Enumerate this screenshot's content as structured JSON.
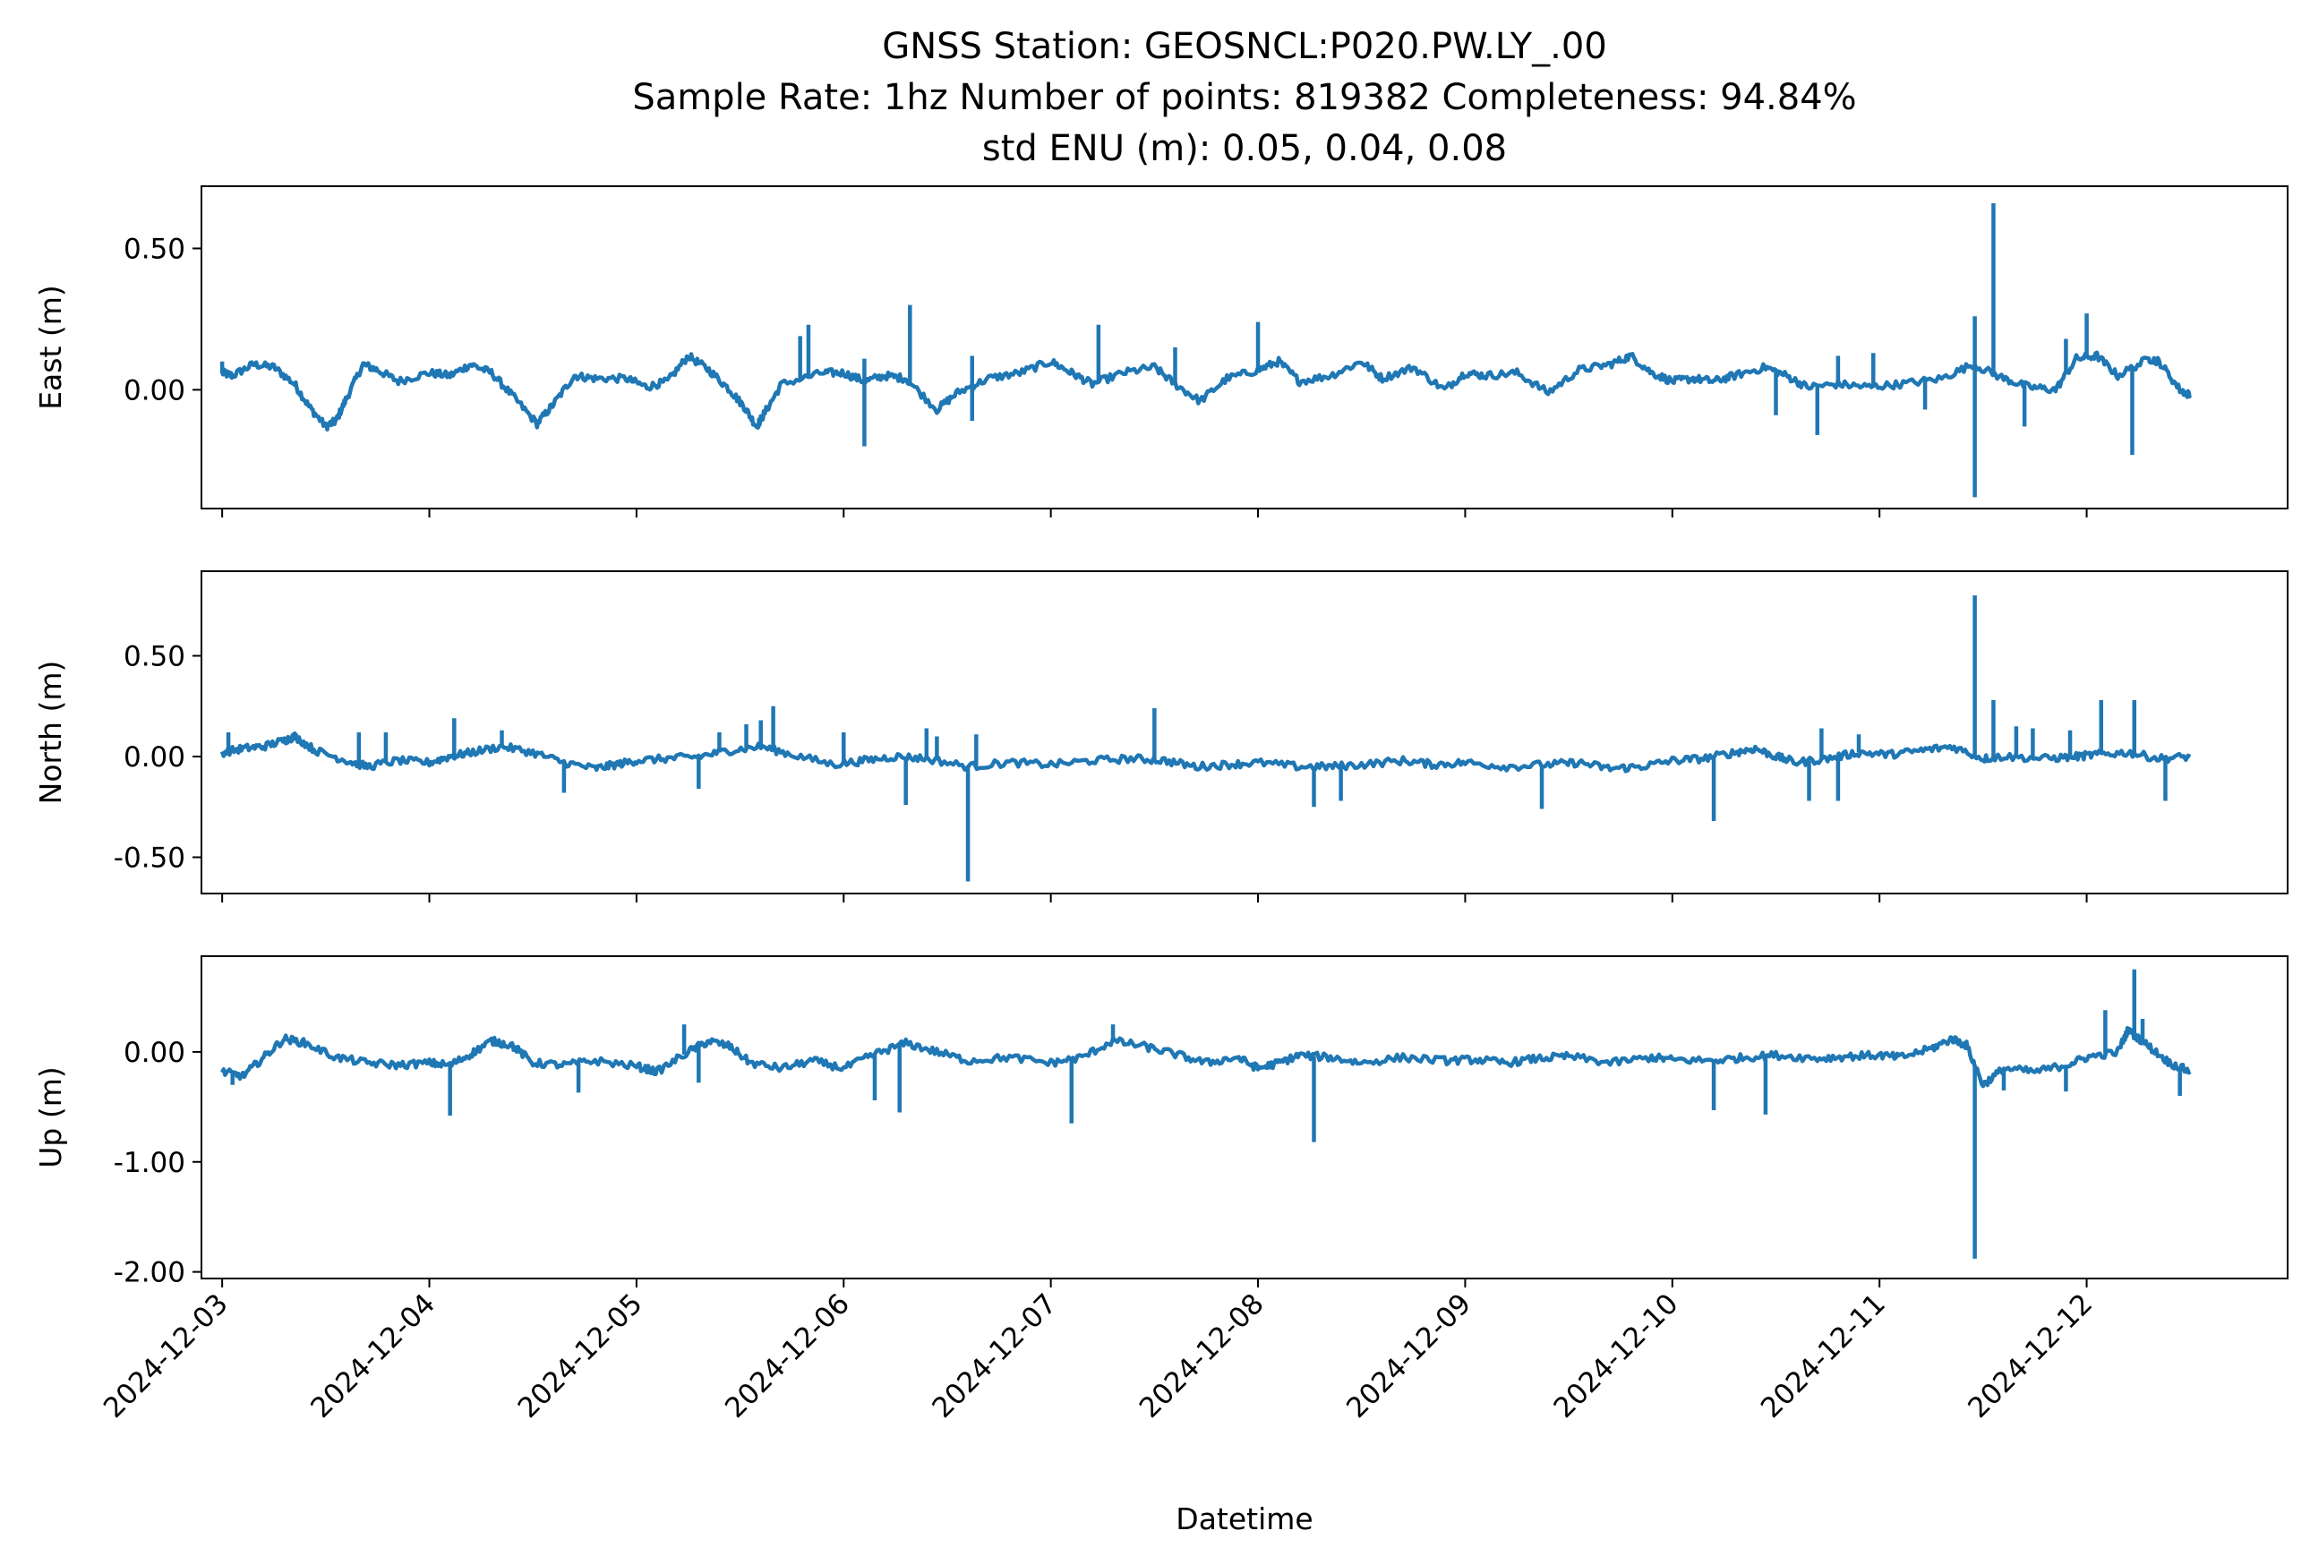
{
  "chart_data": {
    "type": "line",
    "title_lines": [
      "GNSS Station: GEOSNCL:P020.PW.LY_.00",
      "Sample Rate: 1hz   Number of points: 819382    Completeness:  94.84%",
      "std ENU (m):  0.05, 0.04, 0.08"
    ],
    "xlabel": "Datetime",
    "x_ticks": [
      "2024-12-03",
      "2024-12-04",
      "2024-12-05",
      "2024-12-06",
      "2024-12-07",
      "2024-12-08",
      "2024-12-09",
      "2024-12-10",
      "2024-12-11",
      "2024-12-12"
    ],
    "x_range_days": [
      -0.1,
      9.97
    ],
    "x_data_range_days": [
      0,
      9.5
    ],
    "line_color": "#1f77b4",
    "grid": false,
    "legend": "none",
    "subplots": [
      {
        "name": "east",
        "ylabel": "East (m)",
        "ylim": [
          -0.42,
          0.72
        ],
        "y_ticks": [
          0.5,
          0.0
        ],
        "y_tick_labels": [
          "0.50",
          "0.00"
        ],
        "points": [
          [
            0,
            0.06
          ],
          [
            0.05,
            0.05
          ],
          [
            0.15,
            0.09
          ],
          [
            0.25,
            0.08
          ],
          [
            0.35,
            0.02
          ],
          [
            0.42,
            -0.06
          ],
          [
            0.5,
            -0.13
          ],
          [
            0.55,
            -0.11
          ],
          [
            0.6,
            -0.03
          ],
          [
            0.68,
            0.09
          ],
          [
            0.75,
            0.07
          ],
          [
            0.85,
            0.03
          ],
          [
            1.0,
            0.06
          ],
          [
            1.1,
            0.05
          ],
          [
            1.2,
            0.09
          ],
          [
            1.3,
            0.06
          ],
          [
            1.4,
            -0.02
          ],
          [
            1.52,
            -0.12
          ],
          [
            1.6,
            -0.05
          ],
          [
            1.7,
            0.05
          ],
          [
            1.8,
            0.04
          ],
          [
            1.95,
            0.04
          ],
          [
            2.05,
            0.01
          ],
          [
            2.15,
            0.03
          ],
          [
            2.25,
            0.12
          ],
          [
            2.35,
            0.07
          ],
          [
            2.45,
            0.0
          ],
          [
            2.52,
            -0.06
          ],
          [
            2.58,
            -0.13
          ],
          [
            2.62,
            -0.08
          ],
          [
            2.7,
            0.02
          ],
          [
            2.9,
            0.06
          ],
          [
            3.0,
            0.06
          ],
          [
            3.1,
            0.03
          ],
          [
            3.2,
            0.05
          ],
          [
            3.3,
            0.04
          ],
          [
            3.45,
            -0.07
          ],
          [
            3.55,
            -0.01
          ],
          [
            3.7,
            0.04
          ],
          [
            3.85,
            0.06
          ],
          [
            4.0,
            0.1
          ],
          [
            4.1,
            0.06
          ],
          [
            4.2,
            0.02
          ],
          [
            4.35,
            0.06
          ],
          [
            4.5,
            0.08
          ],
          [
            4.6,
            0.02
          ],
          [
            4.72,
            -0.04
          ],
          [
            4.85,
            0.04
          ],
          [
            5.0,
            0.07
          ],
          [
            5.1,
            0.1
          ],
          [
            5.2,
            0.03
          ],
          [
            5.35,
            0.05
          ],
          [
            5.5,
            0.1
          ],
          [
            5.6,
            0.04
          ],
          [
            5.75,
            0.08
          ],
          [
            5.9,
            0.0
          ],
          [
            6.0,
            0.06
          ],
          [
            6.1,
            0.05
          ],
          [
            6.25,
            0.06
          ],
          [
            6.4,
            -0.01
          ],
          [
            6.55,
            0.07
          ],
          [
            6.7,
            0.09
          ],
          [
            6.8,
            0.12
          ],
          [
            6.9,
            0.06
          ],
          [
            7.0,
            0.03
          ],
          [
            7.1,
            0.04
          ],
          [
            7.2,
            0.03
          ],
          [
            7.3,
            0.05
          ],
          [
            7.45,
            0.08
          ],
          [
            7.55,
            0.05
          ],
          [
            7.65,
            0.01
          ],
          [
            7.8,
            0.02
          ],
          [
            7.95,
            0.01
          ],
          [
            8.1,
            0.02
          ],
          [
            8.3,
            0.04
          ],
          [
            8.45,
            0.09
          ],
          [
            8.6,
            0.04
          ],
          [
            8.72,
            0.01
          ],
          [
            8.85,
            0.0
          ],
          [
            8.95,
            0.11
          ],
          [
            9.05,
            0.12
          ],
          [
            9.15,
            0.05
          ],
          [
            9.3,
            0.11
          ],
          [
            9.35,
            0.1
          ],
          [
            9.45,
            0.0
          ],
          [
            9.5,
            -0.02
          ]
        ],
        "spikes": [
          [
            0.0,
            0.1
          ],
          [
            2.83,
            0.23
          ],
          [
            2.79,
            0.19
          ],
          [
            3.1,
            -0.2
          ],
          [
            3.1,
            0.11
          ],
          [
            3.32,
            0.3
          ],
          [
            3.62,
            -0.11
          ],
          [
            3.62,
            0.12
          ],
          [
            4.23,
            0.23
          ],
          [
            4.6,
            0.15
          ],
          [
            5.0,
            0.24
          ],
          [
            7.5,
            -0.09
          ],
          [
            7.7,
            -0.16
          ],
          [
            7.8,
            0.12
          ],
          [
            7.97,
            0.13
          ],
          [
            8.22,
            -0.07
          ],
          [
            8.46,
            -0.38
          ],
          [
            8.46,
            0.26
          ],
          [
            8.55,
            0.66
          ],
          [
            8.7,
            -0.13
          ],
          [
            8.9,
            0.18
          ],
          [
            9.0,
            0.27
          ],
          [
            9.22,
            -0.23
          ]
        ]
      },
      {
        "name": "north",
        "ylabel": "North (m)",
        "ylim": [
          -0.68,
          0.92
        ],
        "y_ticks": [
          0.5,
          0.0,
          -0.5
        ],
        "y_tick_labels": [
          "0.50",
          "0.00",
          "-0.50"
        ],
        "points": [
          [
            0,
            0.02
          ],
          [
            0.1,
            0.04
          ],
          [
            0.2,
            0.05
          ],
          [
            0.3,
            0.08
          ],
          [
            0.35,
            0.1
          ],
          [
            0.45,
            0.03
          ],
          [
            0.6,
            -0.02
          ],
          [
            0.7,
            -0.05
          ],
          [
            0.85,
            -0.02
          ],
          [
            1.0,
            -0.03
          ],
          [
            1.1,
            0.0
          ],
          [
            1.2,
            0.02
          ],
          [
            1.35,
            0.05
          ],
          [
            1.5,
            0.02
          ],
          [
            1.65,
            -0.03
          ],
          [
            1.8,
            -0.06
          ],
          [
            1.9,
            -0.04
          ],
          [
            2.0,
            -0.02
          ],
          [
            2.15,
            -0.01
          ],
          [
            2.3,
            0.0
          ],
          [
            2.45,
            0.03
          ],
          [
            2.6,
            0.05
          ],
          [
            2.75,
            0.01
          ],
          [
            2.95,
            -0.04
          ],
          [
            3.1,
            -0.02
          ],
          [
            3.25,
            0.0
          ],
          [
            3.4,
            -0.01
          ],
          [
            3.6,
            -0.05
          ],
          [
            3.8,
            -0.03
          ],
          [
            4.0,
            -0.04
          ],
          [
            4.2,
            -0.02
          ],
          [
            4.4,
            -0.01
          ],
          [
            4.55,
            -0.02
          ],
          [
            4.7,
            -0.05
          ],
          [
            4.85,
            -0.04
          ],
          [
            5.0,
            -0.03
          ],
          [
            5.2,
            -0.05
          ],
          [
            5.35,
            -0.05
          ],
          [
            5.5,
            -0.04
          ],
          [
            5.7,
            -0.02
          ],
          [
            5.85,
            -0.04
          ],
          [
            6.0,
            -0.03
          ],
          [
            6.2,
            -0.05
          ],
          [
            6.4,
            -0.04
          ],
          [
            6.55,
            -0.03
          ],
          [
            6.7,
            -0.06
          ],
          [
            6.85,
            -0.05
          ],
          [
            7.0,
            -0.02
          ],
          [
            7.15,
            -0.01
          ],
          [
            7.3,
            0.02
          ],
          [
            7.4,
            0.04
          ],
          [
            7.5,
            0.0
          ],
          [
            7.6,
            -0.03
          ],
          [
            7.75,
            -0.01
          ],
          [
            7.9,
            0.02
          ],
          [
            8.05,
            0.01
          ],
          [
            8.2,
            0.03
          ],
          [
            8.35,
            0.05
          ],
          [
            8.5,
            -0.01
          ],
          [
            8.6,
            0.0
          ],
          [
            8.8,
            -0.01
          ],
          [
            8.95,
            0.0
          ],
          [
            9.05,
            0.01
          ],
          [
            9.2,
            0.02
          ],
          [
            9.35,
            -0.01
          ],
          [
            9.5,
            0.0
          ]
        ],
        "spikes": [
          [
            0.03,
            0.12
          ],
          [
            0.66,
            0.12
          ],
          [
            0.79,
            0.12
          ],
          [
            1.12,
            0.19
          ],
          [
            1.35,
            0.13
          ],
          [
            1.65,
            -0.18
          ],
          [
            2.4,
            0.12
          ],
          [
            2.53,
            0.16
          ],
          [
            2.6,
            0.18
          ],
          [
            2.66,
            0.25
          ],
          [
            2.3,
            -0.16
          ],
          [
            3.0,
            0.12
          ],
          [
            3.3,
            -0.24
          ],
          [
            3.4,
            0.14
          ],
          [
            3.45,
            0.1
          ],
          [
            3.6,
            -0.62
          ],
          [
            3.64,
            0.11
          ],
          [
            4.5,
            0.24
          ],
          [
            5.27,
            -0.25
          ],
          [
            5.4,
            -0.22
          ],
          [
            6.37,
            -0.26
          ],
          [
            7.2,
            -0.32
          ],
          [
            7.66,
            -0.22
          ],
          [
            7.72,
            0.14
          ],
          [
            7.8,
            -0.22
          ],
          [
            7.9,
            0.11
          ],
          [
            8.46,
            0.8
          ],
          [
            8.55,
            0.28
          ],
          [
            8.66,
            0.15
          ],
          [
            8.74,
            0.14
          ],
          [
            8.92,
            0.13
          ],
          [
            9.07,
            0.28
          ],
          [
            9.23,
            0.28
          ],
          [
            9.38,
            -0.22
          ]
        ]
      },
      {
        "name": "up",
        "ylabel": "Up (m)",
        "ylim": [
          -2.06,
          0.87
        ],
        "y_ticks": [
          0.0,
          -1.0,
          -2.0
        ],
        "y_tick_labels": [
          "0.00",
          "-1.00",
          "-2.00"
        ],
        "points": [
          [
            0,
            -0.18
          ],
          [
            0.1,
            -0.22
          ],
          [
            0.2,
            -0.05
          ],
          [
            0.3,
            0.12
          ],
          [
            0.4,
            0.08
          ],
          [
            0.55,
            -0.05
          ],
          [
            0.7,
            -0.1
          ],
          [
            0.85,
            -0.12
          ],
          [
            1.0,
            -0.1
          ],
          [
            1.1,
            -0.12
          ],
          [
            1.2,
            -0.02
          ],
          [
            1.3,
            0.1
          ],
          [
            1.4,
            0.06
          ],
          [
            1.5,
            -0.1
          ],
          [
            1.65,
            -0.12
          ],
          [
            1.8,
            -0.08
          ],
          [
            2.0,
            -0.13
          ],
          [
            2.1,
            -0.18
          ],
          [
            2.25,
            0.0
          ],
          [
            2.35,
            0.1
          ],
          [
            2.45,
            0.05
          ],
          [
            2.55,
            -0.1
          ],
          [
            2.7,
            -0.15
          ],
          [
            2.85,
            -0.08
          ],
          [
            3.0,
            -0.15
          ],
          [
            3.15,
            -0.02
          ],
          [
            3.3,
            0.08
          ],
          [
            3.45,
            0.0
          ],
          [
            3.6,
            -0.08
          ],
          [
            3.8,
            -0.05
          ],
          [
            4.0,
            -0.1
          ],
          [
            4.15,
            -0.05
          ],
          [
            4.3,
            0.1
          ],
          [
            4.45,
            0.05
          ],
          [
            4.6,
            -0.02
          ],
          [
            4.75,
            -0.1
          ],
          [
            4.9,
            -0.05
          ],
          [
            5.0,
            -0.15
          ],
          [
            5.1,
            -0.1
          ],
          [
            5.2,
            -0.03
          ],
          [
            5.35,
            -0.05
          ],
          [
            5.5,
            -0.1
          ],
          [
            5.7,
            -0.05
          ],
          [
            5.9,
            -0.08
          ],
          [
            6.05,
            -0.07
          ],
          [
            6.2,
            -0.1
          ],
          [
            6.35,
            -0.06
          ],
          [
            6.5,
            -0.04
          ],
          [
            6.7,
            -0.1
          ],
          [
            6.9,
            -0.05
          ],
          [
            7.0,
            -0.07
          ],
          [
            7.2,
            -0.08
          ],
          [
            7.35,
            -0.05
          ],
          [
            7.5,
            -0.03
          ],
          [
            7.7,
            -0.06
          ],
          [
            7.85,
            -0.04
          ],
          [
            8.0,
            -0.03
          ],
          [
            8.1,
            -0.05
          ],
          [
            8.25,
            0.03
          ],
          [
            8.35,
            0.12
          ],
          [
            8.42,
            0.06
          ],
          [
            8.5,
            -0.3
          ],
          [
            8.6,
            -0.15
          ],
          [
            8.75,
            -0.18
          ],
          [
            8.9,
            -0.12
          ],
          [
            9.0,
            -0.05
          ],
          [
            9.15,
            0.0
          ],
          [
            9.2,
            0.2
          ],
          [
            9.3,
            0.05
          ],
          [
            9.4,
            -0.1
          ],
          [
            9.5,
            -0.18
          ]
        ],
        "spikes": [
          [
            0.05,
            -0.3
          ],
          [
            1.1,
            -0.58
          ],
          [
            1.72,
            -0.37
          ],
          [
            2.23,
            0.25
          ],
          [
            2.3,
            -0.28
          ],
          [
            3.15,
            -0.44
          ],
          [
            3.27,
            -0.55
          ],
          [
            4.1,
            -0.65
          ],
          [
            4.3,
            0.25
          ],
          [
            5.27,
            -0.82
          ],
          [
            7.2,
            -0.53
          ],
          [
            7.45,
            -0.57
          ],
          [
            8.46,
            -1.88
          ],
          [
            8.6,
            -0.35
          ],
          [
            8.9,
            -0.36
          ],
          [
            9.09,
            0.38
          ],
          [
            9.23,
            0.75
          ],
          [
            9.27,
            0.3
          ],
          [
            9.45,
            -0.4
          ]
        ]
      }
    ]
  }
}
